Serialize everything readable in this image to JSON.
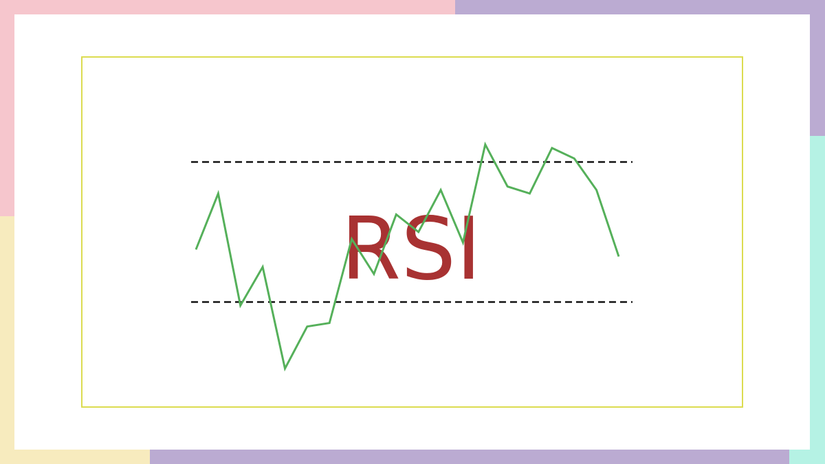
{
  "chart_data": {
    "type": "line",
    "title": "RSI",
    "xlabel": "",
    "ylabel": "",
    "ylim": [
      0,
      100
    ],
    "grid": false,
    "reference_lines": [
      {
        "y": 70,
        "style": "dashed"
      },
      {
        "y": 30,
        "style": "dashed"
      }
    ],
    "series": [
      {
        "x": [
          0,
          1,
          2,
          3,
          4,
          5,
          6,
          7,
          8,
          9,
          10,
          11,
          12,
          13,
          14,
          15,
          16,
          17,
          18,
          19
        ],
        "values": [
          45,
          61,
          29,
          40,
          11,
          23,
          24,
          48,
          38,
          55,
          50,
          62,
          47,
          75,
          63,
          61,
          74,
          71,
          62,
          43
        ],
        "color": "#55b05a"
      }
    ]
  },
  "colors": {
    "pink": "#f6c6cd",
    "purple": "#bbabd2",
    "mint": "#b5f2e4",
    "yellow": "#f7ebbe",
    "frame": "#dcdc50",
    "title": "#a83232",
    "line": "#55b05a",
    "dashed": "#111111"
  }
}
